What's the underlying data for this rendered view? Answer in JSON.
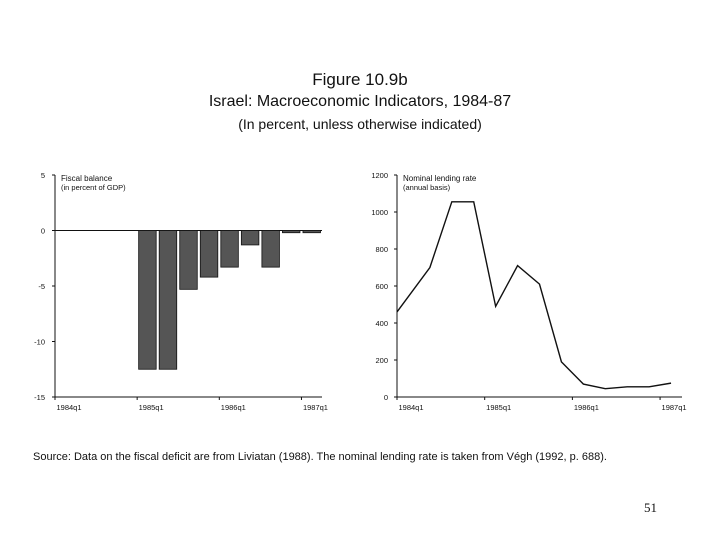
{
  "figure": {
    "number": "Figure 10.9b",
    "title": "Israel: Macroeconomic Indicators, 1984-87",
    "subtitle": "(In percent, unless otherwise indicated)"
  },
  "chart_data": [
    {
      "type": "bar",
      "label_line1": "Fiscal balance",
      "label_line2": "(in percent of GDP)",
      "ylim": [
        -15,
        5
      ],
      "yticks": [
        5,
        0,
        -5,
        -10,
        -15
      ],
      "ytick_labels": [
        "5",
        "0",
        "-5",
        "-10",
        "-15"
      ],
      "xtick_labels": [
        "1984q1",
        "1985q1",
        "1986q1",
        "1987q1"
      ],
      "xtick_index": [
        0,
        4,
        8,
        12
      ],
      "n_periods": 13,
      "values": [
        null,
        null,
        null,
        null,
        -12.5,
        -12.5,
        -5.3,
        -4.2,
        -3.3,
        -1.3,
        -3.3,
        -0.2,
        -0.2
      ],
      "bar_color": "#555555"
    },
    {
      "type": "line",
      "label_line1": "Nominal lending rate",
      "label_line2": "(annual basis)",
      "ylim": [
        0,
        1200
      ],
      "yticks": [
        1200,
        1000,
        800,
        600,
        400,
        200,
        0
      ],
      "ytick_labels": [
        "1200",
        "1000",
        "800",
        "600",
        "400",
        "200",
        "0"
      ],
      "xtick_labels": [
        "1984q1",
        "1985q1",
        "1986q1",
        "1987q1"
      ],
      "xtick_index": [
        0,
        4,
        8,
        12
      ],
      "n_periods": 13,
      "values": [
        460,
        700,
        1055,
        1055,
        490,
        710,
        610,
        190,
        70,
        45,
        55,
        55,
        75
      ],
      "line_color": "#111111"
    }
  ],
  "source_text": "Source: Data on the fiscal deficit are from Liviatan (1988).  The nominal lending rate is taken from Végh (1992, p. 688).",
  "page_number": "51"
}
